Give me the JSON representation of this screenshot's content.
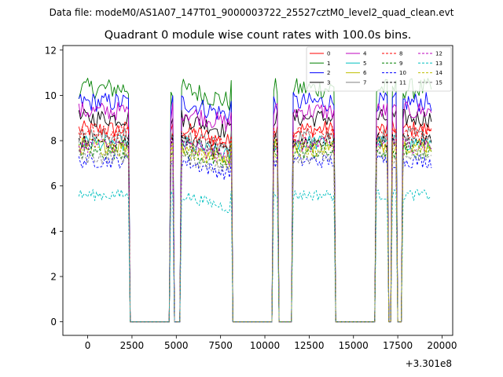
{
  "suptitle": "Data file: modeM0/AS1A07_147T01_9000003722_25527cztM0_level2_quad_clean.evt",
  "chart_data": {
    "type": "line",
    "title": "Quadrant 0 module wise count rates with 100.0s bins.",
    "xlabel": "",
    "ylabel": "",
    "x_offset_label": "+3.301e8",
    "xlim": [
      -1400,
      20600
    ],
    "ylim": [
      -0.6,
      12.2
    ],
    "xticks": [
      0,
      2500,
      5000,
      7500,
      10000,
      12500,
      15000,
      17500,
      20000
    ],
    "xtick_labels": [
      "0",
      "2500",
      "5000",
      "7500",
      "10000",
      "12500",
      "15000",
      "17500",
      "20000"
    ],
    "yticks": [
      0,
      2,
      4,
      6,
      8,
      10,
      12
    ],
    "ytick_labels": [
      "0",
      "2",
      "4",
      "6",
      "8",
      "10",
      "12"
    ],
    "bin_width": 100,
    "x_start": -500,
    "x_end": 19400,
    "active_intervals": [
      [
        -500,
        2300
      ],
      [
        4700,
        4800
      ],
      [
        5300,
        8100
      ],
      [
        10500,
        10700
      ],
      [
        11600,
        11800
      ],
      [
        11900,
        13900
      ],
      [
        16300,
        16900
      ],
      [
        17200,
        17400
      ],
      [
        17800,
        19400
      ]
    ],
    "legend_position": "upper right",
    "series": [
      {
        "name": "0",
        "color": "#ff0000",
        "dashed": false,
        "level": 8.5
      },
      {
        "name": "1",
        "color": "#008000",
        "dashed": false,
        "level": 10.3
      },
      {
        "name": "2",
        "color": "#0000ff",
        "dashed": false,
        "level": 9.7
      },
      {
        "name": "3",
        "color": "#000000",
        "dashed": false,
        "level": 9.0
      },
      {
        "name": "4",
        "color": "#bf00bf",
        "dashed": false,
        "level": 9.3
      },
      {
        "name": "5",
        "color": "#00bfbf",
        "dashed": false,
        "level": 7.9
      },
      {
        "name": "6",
        "color": "#bfbf00",
        "dashed": false,
        "level": 7.8
      },
      {
        "name": "7",
        "color": "#808080",
        "dashed": false,
        "level": 8.2
      },
      {
        "name": "8",
        "color": "#ff0000",
        "dashed": true,
        "level": 8.3
      },
      {
        "name": "9",
        "color": "#008000",
        "dashed": true,
        "level": 7.5
      },
      {
        "name": "10",
        "color": "#0000ff",
        "dashed": true,
        "level": 7.1
      },
      {
        "name": "11",
        "color": "#000000",
        "dashed": true,
        "level": 8.0
      },
      {
        "name": "12",
        "color": "#bf00bf",
        "dashed": true,
        "level": 7.8
      },
      {
        "name": "13",
        "color": "#00bfbf",
        "dashed": true,
        "level": 5.6
      },
      {
        "name": "14",
        "color": "#bfbf00",
        "dashed": true,
        "level": 7.6
      },
      {
        "name": "15",
        "color": "#808080",
        "dashed": true,
        "level": 7.3
      }
    ]
  }
}
